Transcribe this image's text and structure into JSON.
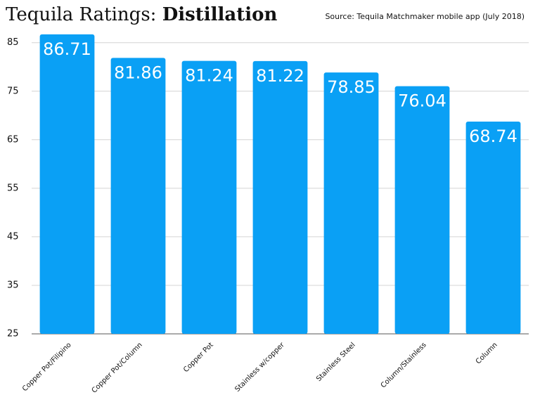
{
  "chart_data": {
    "type": "bar",
    "title": "Tequila Ratings:",
    "title_emphasis": "Distillation",
    "source": "Source: Tequila Matchmaker mobile app (July 2018)",
    "categories": [
      "Copper Pot/Filipino",
      "Copper Pot/Column",
      "Copper Pot",
      "Stainless w/copper",
      "Stainless Steel",
      "Column/Stainless",
      "Column"
    ],
    "values": [
      86.71,
      81.86,
      81.24,
      81.22,
      78.85,
      76.04,
      68.74
    ],
    "color": "#0aa0f5",
    "ylim": [
      25,
      88
    ],
    "yticks": [
      25,
      35,
      45,
      55,
      65,
      75,
      85
    ],
    "grid": true
  }
}
